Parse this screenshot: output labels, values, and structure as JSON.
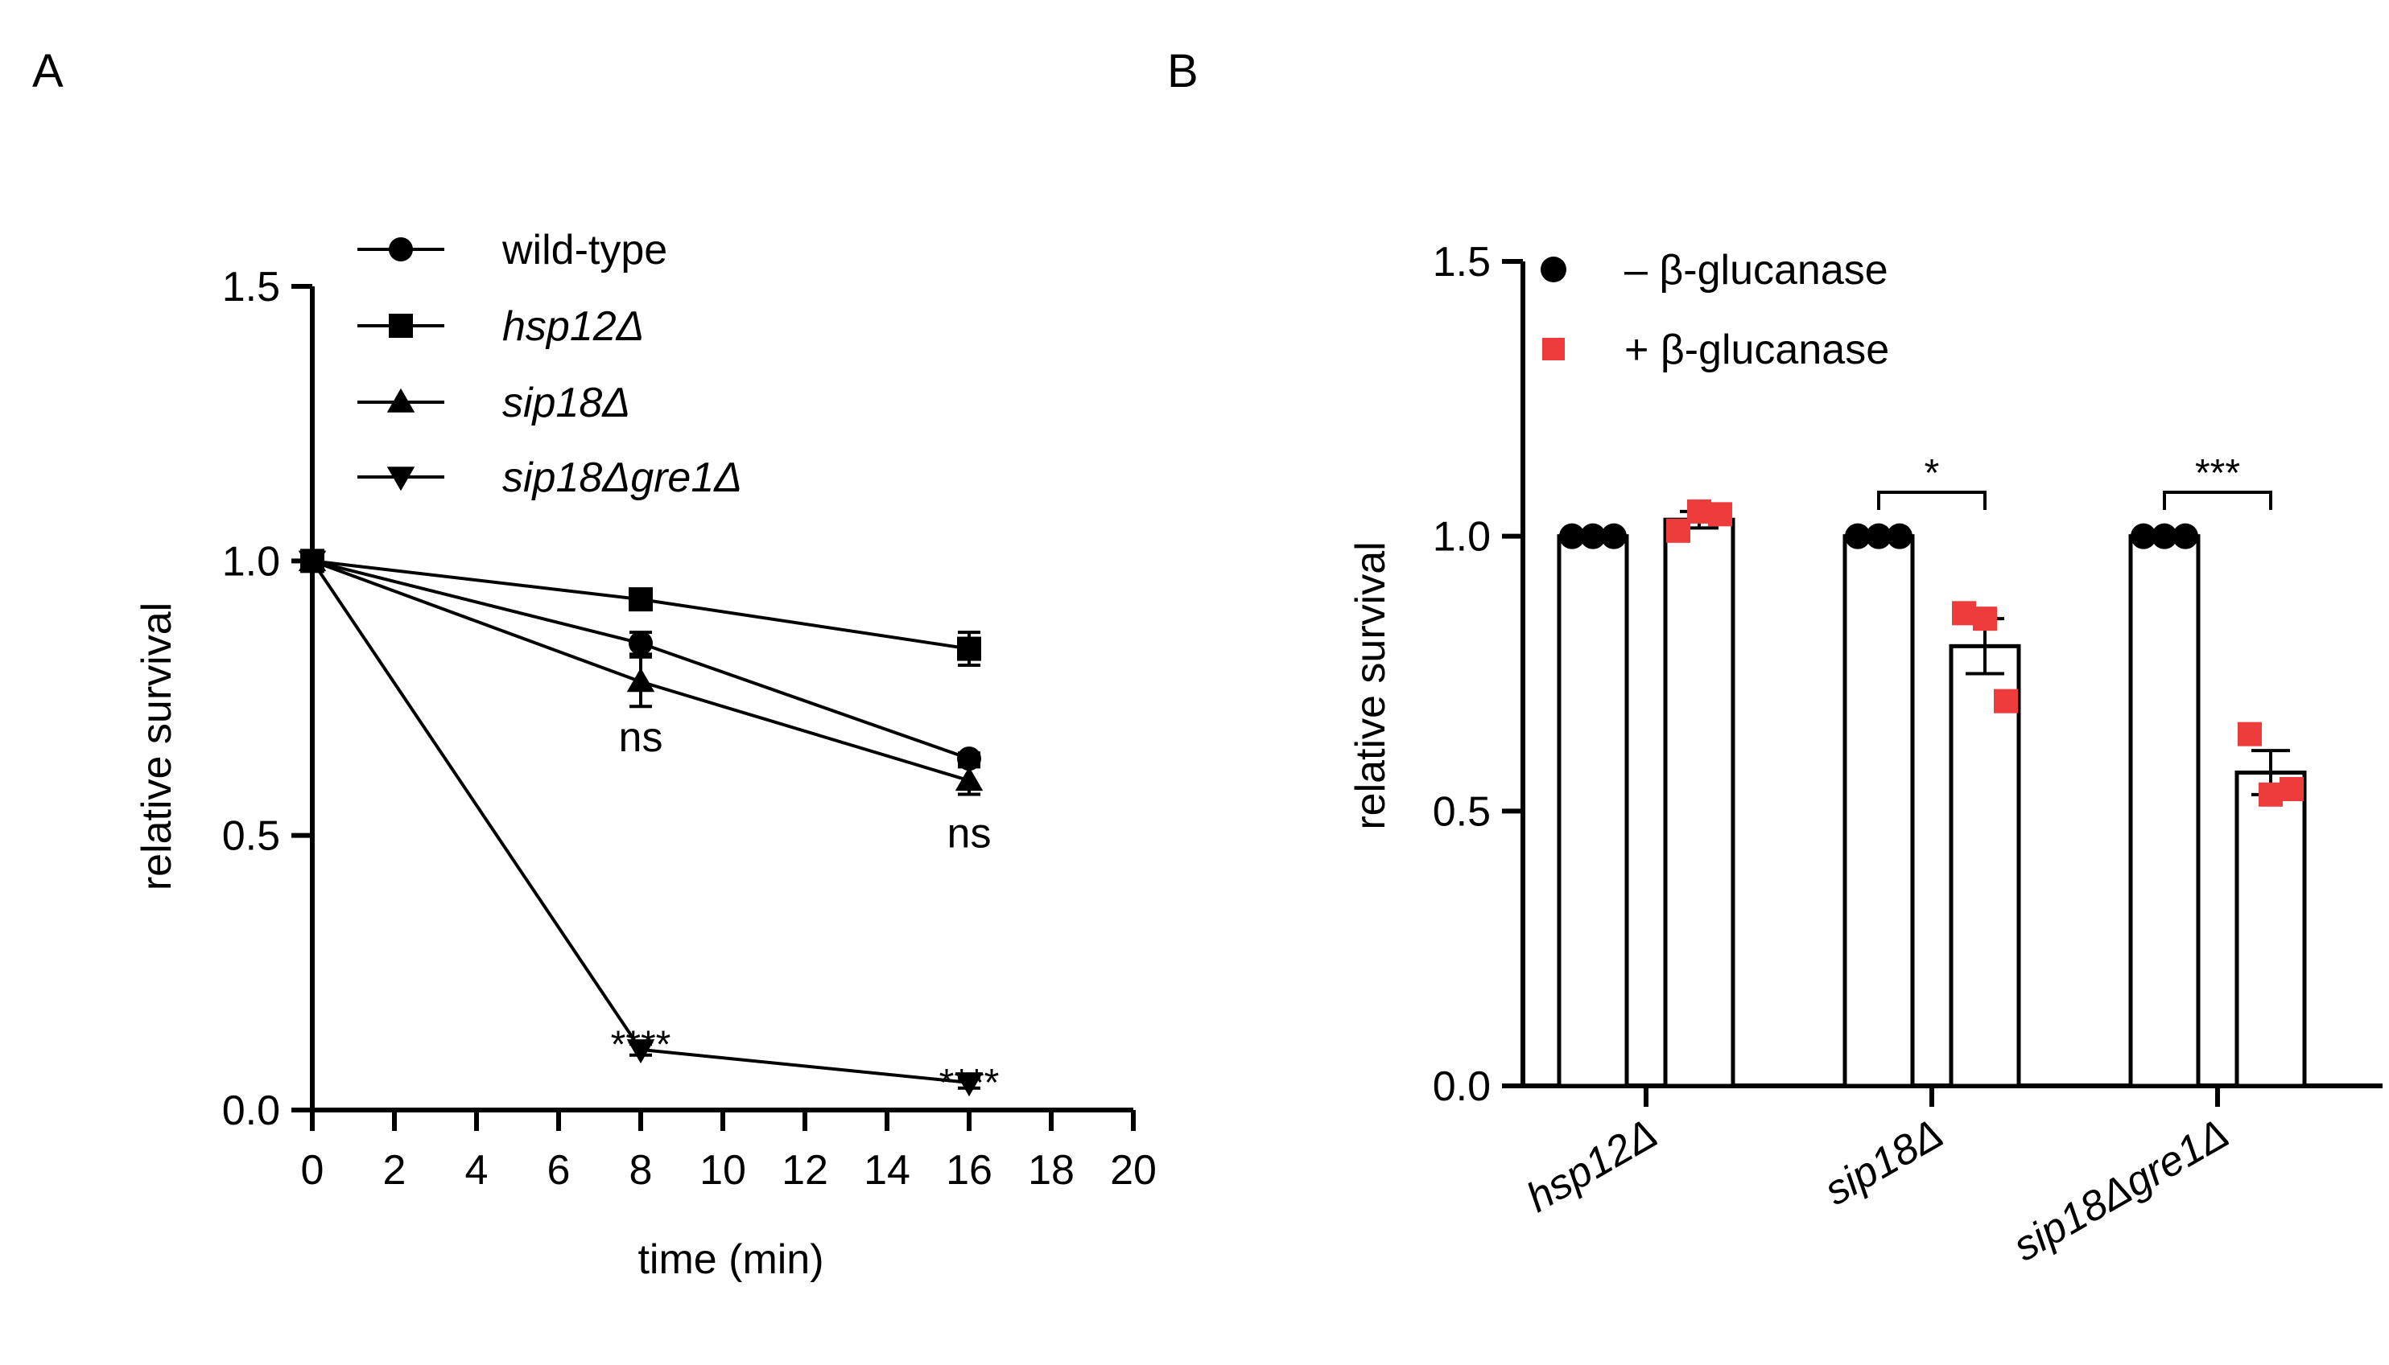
{
  "panels": {
    "a_label": "A",
    "b_label": "B"
  },
  "chart_data": [
    {
      "type": "line",
      "panel": "A",
      "xlabel": "time (min)",
      "ylabel": "relative survival",
      "xlim": [
        0,
        20
      ],
      "ylim": [
        0,
        1.5
      ],
      "x_ticks": [
        0,
        2,
        4,
        6,
        8,
        10,
        12,
        14,
        16,
        18,
        20
      ],
      "x_tick_labels": [
        "0",
        "2",
        "4",
        "6",
        "8",
        "10",
        "12",
        "14",
        "16",
        "18",
        "20"
      ],
      "y_ticks": [
        0,
        0.5,
        1.0,
        1.5
      ],
      "y_tick_labels": [
        "0.0",
        "0.5",
        "1.0",
        "1.5"
      ],
      "legend_position": "top-right",
      "series": [
        {
          "name": "wild-type",
          "italic": false,
          "marker": "circle",
          "x": [
            0,
            8,
            16
          ],
          "values": [
            1.0,
            0.85,
            0.64
          ],
          "err": [
            0,
            0.02,
            0.01
          ]
        },
        {
          "name": "hsp12Δ",
          "italic": true,
          "marker": "square",
          "x": [
            0,
            8,
            16
          ],
          "values": [
            1.0,
            0.93,
            0.84
          ],
          "err": [
            0,
            0.015,
            0.03
          ]
        },
        {
          "name": "sip18Δ",
          "italic": true,
          "marker": "triangle-up",
          "x": [
            0,
            8,
            16
          ],
          "values": [
            1.0,
            0.78,
            0.6
          ],
          "err": [
            0,
            0.045,
            0.025
          ]
        },
        {
          "name": "sip18Δgre1Δ",
          "italic": true,
          "marker": "triangle-down",
          "x": [
            0,
            8,
            16
          ],
          "values": [
            1.0,
            0.11,
            0.05
          ],
          "err": [
            0,
            0.01,
            0.01
          ]
        }
      ],
      "annotations": [
        {
          "text": "ns",
          "x": 8,
          "y": 0.68
        },
        {
          "text": "ns",
          "x": 16,
          "y": 0.505
        },
        {
          "text": "****",
          "x": 8,
          "y": 0.14
        },
        {
          "text": "****",
          "x": 16,
          "y": 0.07
        }
      ]
    },
    {
      "type": "bar",
      "panel": "B",
      "ylabel": "relative survival",
      "ylim": [
        0,
        1.5
      ],
      "y_ticks": [
        0,
        0.5,
        1.0,
        1.5
      ],
      "y_tick_labels": [
        "0.0",
        "0.5",
        "1.0",
        "1.5"
      ],
      "categories": [
        "hsp12Δ",
        "sip18Δ",
        "sip18Δgre1Δ"
      ],
      "legend_position": "top-left",
      "series": [
        {
          "name": "– β-glucanase",
          "color": "#000000",
          "marker": "circle",
          "values": [
            1.0,
            1.0,
            1.0
          ],
          "err": [
            0,
            0,
            0
          ],
          "points": [
            [
              1.0,
              1.0,
              1.0
            ],
            [
              1.0,
              1.0,
              1.0
            ],
            [
              1.0,
              1.0,
              1.0
            ]
          ]
        },
        {
          "name": "+ β-glucanase",
          "color": "#ee3b3b",
          "marker": "square",
          "values": [
            1.03,
            0.8,
            0.57
          ],
          "err": [
            0.015,
            0.05,
            0.04
          ],
          "points": [
            [
              1.01,
              1.045,
              1.04
            ],
            [
              0.86,
              0.85,
              0.7
            ],
            [
              0.64,
              0.53,
              0.54
            ]
          ]
        }
      ],
      "significance": [
        {
          "category": "sip18Δ",
          "label": "*"
        },
        {
          "category": "sip18Δgre1Δ",
          "label": "***"
        }
      ]
    }
  ]
}
